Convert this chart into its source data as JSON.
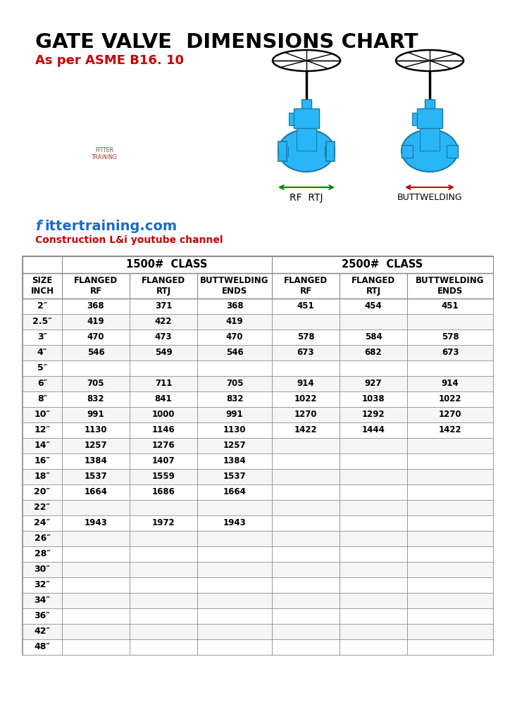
{
  "title": "GATE VALVE  DIMENSIONS CHART",
  "subtitle": "As per ASME B16. 10",
  "website_f": "f",
  "website_rest": "ittertraining.com",
  "channel": "Construction L&i youtube channel",
  "col_headers_row1_1500": "1500#  CLASS",
  "col_headers_row1_2500": "2500#  CLASS",
  "col_headers_row2": [
    "SIZE\nINCH",
    "FLANGED\nRF",
    "FLANGED\nRTJ",
    "BUTTWELDING\nENDS",
    "FLANGED\nRF",
    "FLANGED\nRTJ",
    "BUTTWELDING\nENDS"
  ],
  "sizes": [
    "2″",
    "2.5″",
    "3″",
    "4″",
    "5″",
    "6″",
    "8″",
    "10″",
    "12″",
    "14″",
    "16″",
    "18″",
    "20″",
    "22″",
    "24″",
    "26″",
    "28″",
    "30″",
    "32″",
    "34″",
    "36″",
    "42″",
    "48″"
  ],
  "data_1500_rf": [
    "368",
    "419",
    "470",
    "546",
    "",
    "705",
    "832",
    "991",
    "1130",
    "1257",
    "1384",
    "1537",
    "1664",
    "",
    "1943",
    "",
    "",
    "",
    "",
    "",
    "",
    "",
    ""
  ],
  "data_1500_rtj": [
    "371",
    "422",
    "473",
    "549",
    "",
    "711",
    "841",
    "1000",
    "1146",
    "1276",
    "1407",
    "1559",
    "1686",
    "",
    "1972",
    "",
    "",
    "",
    "",
    "",
    "",
    "",
    ""
  ],
  "data_1500_bw": [
    "368",
    "419",
    "470",
    "546",
    "",
    "705",
    "832",
    "991",
    "1130",
    "1257",
    "1384",
    "1537",
    "1664",
    "",
    "1943",
    "",
    "",
    "",
    "",
    "",
    "",
    "",
    ""
  ],
  "data_2500_rf": [
    "451",
    "",
    "578",
    "673",
    "",
    "914",
    "1022",
    "1270",
    "1422",
    "",
    "",
    "",
    "",
    "",
    "",
    "",
    "",
    "",
    "",
    "",
    "",
    "",
    ""
  ],
  "data_2500_rtj": [
    "454",
    "",
    "584",
    "682",
    "",
    "927",
    "1038",
    "1292",
    "1444",
    "",
    "",
    "",
    "",
    "",
    "",
    "",
    "",
    "",
    "",
    "",
    "",
    "",
    ""
  ],
  "data_2500_bw": [
    "451",
    "",
    "578",
    "673",
    "",
    "914",
    "1022",
    "1270",
    "1422",
    "",
    "",
    "",
    "",
    "",
    "",
    "",
    "",
    "",
    "",
    "",
    "",
    "",
    ""
  ],
  "bg_color": "#ffffff",
  "title_color": "#000000",
  "subtitle_color": "#cc0000",
  "website_color_f": "#1a6bcc",
  "website_color_rest": "#1a6bcc",
  "channel_color": "#cc0000",
  "table_border_color": "#888888",
  "header_font_size": 8.5,
  "data_font_size": 8.5,
  "valve_color": "#29b6f6",
  "valve_edge_color": "#1a7aaa",
  "label_rf_rtj": "RF  RTJ",
  "label_bw": "BUTTWELDING"
}
